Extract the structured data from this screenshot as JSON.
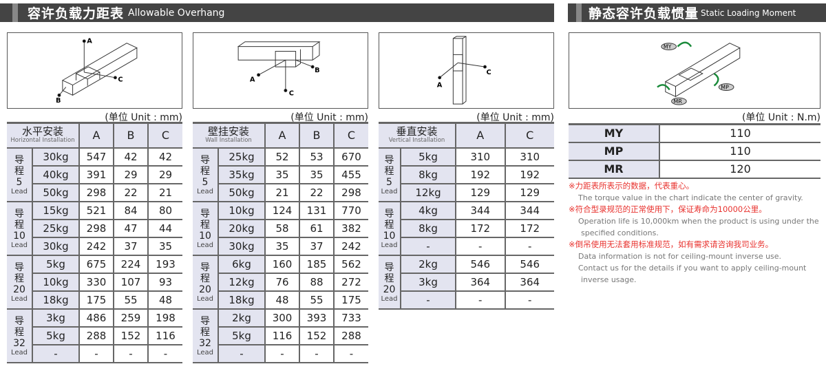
{
  "header_left": {
    "zh": "容许负载力距表",
    "en": "Allowable Overhang"
  },
  "header_right": {
    "zh": "静态容许负载惯量",
    "en": "Static Loading Moment"
  },
  "diagram_labels": {
    "a": "A",
    "b": "B",
    "c": "C",
    "my": "MY",
    "mp": "MP",
    "mr": "MR"
  },
  "unit_mm": "(单位 Unit : mm)",
  "unit_nm": "(单位 Unit : N.m)",
  "lead_word": "Lead",
  "lead_zh": "导程",
  "horizontal": {
    "zh": "水平安装",
    "en": "Horizontal Installation",
    "cols": [
      "A",
      "B",
      "C"
    ],
    "groups": [
      {
        "lead": "5",
        "rows": [
          [
            "30kg",
            "547",
            "42",
            "42"
          ],
          [
            "40kg",
            "391",
            "29",
            "29"
          ],
          [
            "50kg",
            "298",
            "22",
            "21"
          ]
        ]
      },
      {
        "lead": "10",
        "rows": [
          [
            "15kg",
            "521",
            "84",
            "80"
          ],
          [
            "25kg",
            "298",
            "47",
            "44"
          ],
          [
            "30kg",
            "242",
            "37",
            "35"
          ]
        ]
      },
      {
        "lead": "20",
        "rows": [
          [
            "5kg",
            "675",
            "224",
            "193"
          ],
          [
            "10kg",
            "330",
            "107",
            "93"
          ],
          [
            "18kg",
            "175",
            "55",
            "48"
          ]
        ]
      },
      {
        "lead": "32",
        "rows": [
          [
            "3kg",
            "486",
            "259",
            "198"
          ],
          [
            "5kg",
            "288",
            "152",
            "116"
          ],
          [
            "-",
            "-",
            "-",
            "-"
          ]
        ]
      }
    ]
  },
  "wall": {
    "zh": "壁挂安装",
    "en": "Wall Installation",
    "cols": [
      "A",
      "B",
      "C"
    ],
    "groups": [
      {
        "lead": "5",
        "rows": [
          [
            "25kg",
            "52",
            "53",
            "670"
          ],
          [
            "35kg",
            "35",
            "35",
            "455"
          ],
          [
            "50kg",
            "21",
            "22",
            "298"
          ]
        ]
      },
      {
        "lead": "10",
        "rows": [
          [
            "10kg",
            "124",
            "131",
            "770"
          ],
          [
            "20kg",
            "58",
            "61",
            "382"
          ],
          [
            "30kg",
            "35",
            "37",
            "242"
          ]
        ]
      },
      {
        "lead": "20",
        "rows": [
          [
            "6kg",
            "160",
            "185",
            "562"
          ],
          [
            "12kg",
            "76",
            "88",
            "272"
          ],
          [
            "18kg",
            "48",
            "55",
            "175"
          ]
        ]
      },
      {
        "lead": "32",
        "rows": [
          [
            "2kg",
            "300",
            "393",
            "733"
          ],
          [
            "5kg",
            "116",
            "152",
            "288"
          ],
          [
            "-",
            "-",
            "-",
            "-"
          ]
        ]
      }
    ]
  },
  "vertical": {
    "zh": "垂直安装",
    "en": "Vertical Installation",
    "cols": [
      "A",
      "C"
    ],
    "groups": [
      {
        "lead": "5",
        "rows": [
          [
            "5kg",
            "310",
            "310"
          ],
          [
            "8kg",
            "192",
            "192"
          ],
          [
            "12kg",
            "129",
            "129"
          ]
        ]
      },
      {
        "lead": "10",
        "rows": [
          [
            "4kg",
            "344",
            "344"
          ],
          [
            "8kg",
            "172",
            "172"
          ],
          [
            "-",
            "-",
            "-"
          ]
        ]
      },
      {
        "lead": "20",
        "rows": [
          [
            "2kg",
            "546",
            "546"
          ],
          [
            "3kg",
            "364",
            "364"
          ],
          [
            "-",
            "-",
            "-"
          ]
        ]
      }
    ]
  },
  "moment": [
    [
      "MY",
      "110"
    ],
    [
      "MP",
      "110"
    ],
    [
      "MR",
      "120"
    ]
  ],
  "notes": [
    {
      "zh": "※力距表所表示的数据，代表重心。",
      "en": [
        "The torque value in the chart indicate the center of gravity."
      ]
    },
    {
      "zh": "※符合型录规范的正常使用下，保证寿命为10000公里。",
      "en": [
        "Operation life is 10,000km when the product is using under the",
        "specified conditions."
      ]
    },
    {
      "zh": "※倒吊使用无法套用标准规范，如有需求请咨询我司业务。",
      "en": [
        "Data information is not for ceiling-mount inverse use.",
        "Contact us for the details if you want to apply ceiling-mount",
        "inverse usage."
      ]
    }
  ],
  "colors": {
    "header_bg": "#444444",
    "cell_bg": "#e3e4f0",
    "note_red": "#e8322e"
  }
}
